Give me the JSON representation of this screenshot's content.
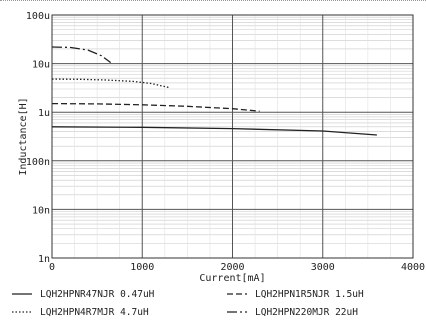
{
  "chart_data": {
    "type": "line",
    "title": "",
    "xlabel": "Current[mA]",
    "ylabel": "Inductance[H]",
    "xlim": [
      0,
      4000
    ],
    "ylim": [
      1e-09,
      0.0001
    ],
    "yscale": "log",
    "grid": true,
    "legend_position": "bottom",
    "x_ticks": [
      {
        "value": 0,
        "label": "0"
      },
      {
        "value": 1000,
        "label": "1000"
      },
      {
        "value": 2000,
        "label": "2000"
      },
      {
        "value": 3000,
        "label": "3000"
      },
      {
        "value": 4000,
        "label": "4000"
      }
    ],
    "y_ticks": [
      {
        "value": 0.0001,
        "label": "100u"
      },
      {
        "value": 1e-05,
        "label": "10u"
      },
      {
        "value": 1e-06,
        "label": "1u"
      },
      {
        "value": 1e-07,
        "label": "100n"
      },
      {
        "value": 1e-08,
        "label": "10n"
      },
      {
        "value": 1e-09,
        "label": "1n"
      }
    ],
    "series": [
      {
        "name": "LQH2HPNR47NJR 0.47uH",
        "dash": "solid",
        "points": [
          [
            0,
            5e-07
          ],
          [
            1000,
            4.9e-07
          ],
          [
            2000,
            4.6e-07
          ],
          [
            3000,
            4.1e-07
          ],
          [
            3600,
            3.4e-07
          ]
        ]
      },
      {
        "name": "LQH2HPN1R5NJR 1.5uH",
        "dash": "dashed",
        "points": [
          [
            0,
            1.5e-06
          ],
          [
            500,
            1.48e-06
          ],
          [
            1000,
            1.42e-06
          ],
          [
            1500,
            1.32e-06
          ],
          [
            2000,
            1.18e-06
          ],
          [
            2300,
            1.05e-06
          ]
        ]
      },
      {
        "name": "LQH2HPN4R7MJR 4.7uH",
        "dash": "dotted",
        "points": [
          [
            0,
            4.8e-06
          ],
          [
            300,
            4.75e-06
          ],
          [
            600,
            4.6e-06
          ],
          [
            900,
            4.3e-06
          ],
          [
            1100,
            3.9e-06
          ],
          [
            1300,
            3.2e-06
          ]
        ]
      },
      {
        "name": "LQH2HPN220MJR 22uH",
        "dash": "dashdot",
        "points": [
          [
            0,
            2.2e-05
          ],
          [
            200,
            2.15e-05
          ],
          [
            400,
            1.9e-05
          ],
          [
            550,
            1.45e-05
          ],
          [
            650,
            1.05e-05
          ]
        ]
      }
    ]
  }
}
